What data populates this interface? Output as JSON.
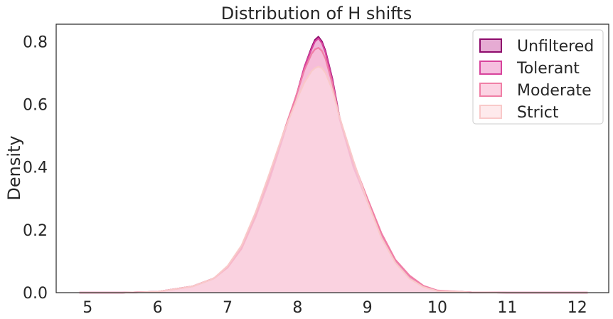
{
  "chart_data": {
    "type": "area",
    "title": "Distribution of H shifts",
    "xlabel": "",
    "ylabel": "Density",
    "xlim": [
      4.55,
      12.45
    ],
    "ylim": [
      0,
      0.855
    ],
    "xticks": [
      5,
      6,
      7,
      8,
      9,
      10,
      11,
      12
    ],
    "yticks": [
      0.0,
      0.2,
      0.4,
      0.6,
      0.8
    ],
    "grid": false,
    "legend_position": "top-right",
    "series": [
      {
        "name": "Unfiltered",
        "color": "#8e0b6c",
        "fill": "#dd8fc4",
        "x": [
          4.88,
          5.5,
          6.0,
          6.5,
          6.8,
          7.0,
          7.2,
          7.4,
          7.6,
          7.8,
          8.0,
          8.1,
          8.2,
          8.25,
          8.3,
          8.35,
          8.4,
          8.5,
          8.6,
          8.8,
          9.0,
          9.2,
          9.4,
          9.6,
          9.8,
          10.0,
          10.5,
          11.0,
          12.15
        ],
        "y": [
          0.0,
          0.0,
          0.003,
          0.02,
          0.045,
          0.08,
          0.14,
          0.24,
          0.36,
          0.5,
          0.64,
          0.72,
          0.78,
          0.805,
          0.815,
          0.8,
          0.77,
          0.68,
          0.56,
          0.4,
          0.29,
          0.18,
          0.1,
          0.05,
          0.02,
          0.006,
          0.001,
          0.0,
          0.0
        ]
      },
      {
        "name": "Tolerant",
        "color": "#d8439c",
        "fill": "#f3aad4",
        "x": [
          4.88,
          5.5,
          6.0,
          6.5,
          6.8,
          7.0,
          7.2,
          7.4,
          7.6,
          7.8,
          8.0,
          8.1,
          8.2,
          8.25,
          8.3,
          8.35,
          8.4,
          8.5,
          8.6,
          8.8,
          9.0,
          9.2,
          9.4,
          9.6,
          9.8,
          10.0,
          10.5,
          11.0,
          12.15
        ],
        "y": [
          0.0,
          0.0,
          0.003,
          0.02,
          0.045,
          0.08,
          0.14,
          0.24,
          0.36,
          0.5,
          0.64,
          0.72,
          0.775,
          0.8,
          0.81,
          0.795,
          0.765,
          0.675,
          0.555,
          0.4,
          0.29,
          0.18,
          0.1,
          0.05,
          0.02,
          0.006,
          0.001,
          0.0,
          0.0
        ]
      },
      {
        "name": "Moderate",
        "color": "#f07fa6",
        "fill": "#fbc4d9",
        "x": [
          4.88,
          5.5,
          6.0,
          6.5,
          6.8,
          7.0,
          7.2,
          7.4,
          7.6,
          7.8,
          8.0,
          8.1,
          8.2,
          8.25,
          8.3,
          8.35,
          8.4,
          8.5,
          8.6,
          8.8,
          9.0,
          9.2,
          9.4,
          9.6,
          9.8,
          10.0,
          10.5,
          11.0,
          12.15
        ],
        "y": [
          0.0,
          0.0,
          0.003,
          0.02,
          0.045,
          0.08,
          0.14,
          0.245,
          0.37,
          0.51,
          0.64,
          0.71,
          0.76,
          0.775,
          0.78,
          0.77,
          0.745,
          0.665,
          0.56,
          0.415,
          0.3,
          0.19,
          0.105,
          0.055,
          0.022,
          0.007,
          0.001,
          0.0,
          0.0
        ]
      },
      {
        "name": "Strict",
        "color": "#f9c9c9",
        "fill": "#fde3e5",
        "x": [
          4.88,
          5.5,
          6.0,
          6.5,
          6.8,
          7.0,
          7.2,
          7.4,
          7.6,
          7.8,
          8.0,
          8.1,
          8.2,
          8.25,
          8.3,
          8.35,
          8.4,
          8.5,
          8.6,
          8.8,
          9.0,
          9.2,
          9.4,
          9.6,
          9.8,
          10.0,
          10.5,
          11.0,
          12.15
        ],
        "y": [
          0.0,
          0.0,
          0.003,
          0.02,
          0.045,
          0.085,
          0.15,
          0.255,
          0.38,
          0.51,
          0.62,
          0.67,
          0.705,
          0.715,
          0.72,
          0.715,
          0.7,
          0.645,
          0.56,
          0.42,
          0.29,
          0.175,
          0.095,
          0.045,
          0.018,
          0.005,
          0.001,
          0.0,
          0.0
        ]
      }
    ]
  }
}
